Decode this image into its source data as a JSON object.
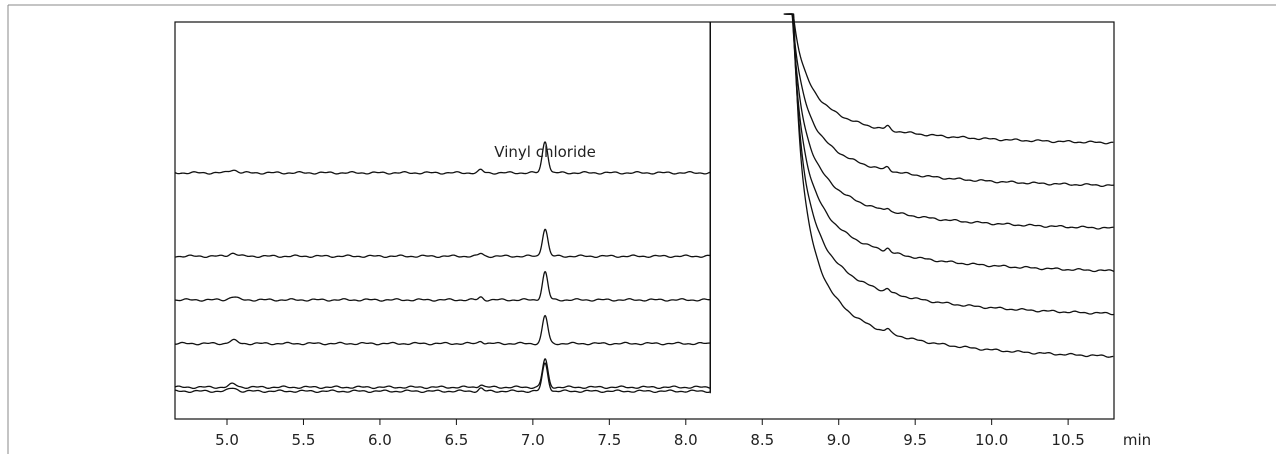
{
  "chart_data": {
    "type": "line",
    "title": "",
    "xlabel": "",
    "ylabel": "",
    "x_unit_label": "min",
    "xlim": [
      4.66,
      10.8
    ],
    "ylim": [
      0,
      100
    ],
    "grid": false,
    "x_ticks": [
      5.0,
      5.5,
      6.0,
      6.5,
      7.0,
      7.5,
      8.0,
      8.5,
      9.0,
      9.5,
      10.0,
      10.5
    ],
    "x_tick_labels": [
      "5.0",
      "5.5",
      "6.0",
      "6.5",
      "7.0",
      "7.5",
      "8.0",
      "8.5",
      "9.0",
      "9.5",
      "10.0",
      "10.5"
    ],
    "valve_switch_time": 8.16,
    "annotations": [
      {
        "text": "Vinyl chloride",
        "x": 7.08
      }
    ],
    "peaks": [
      {
        "name": "Vinyl chloride",
        "retention_time": 7.08
      },
      {
        "name": "",
        "retention_time": 6.66
      },
      {
        "name": "",
        "retention_time": 5.04
      }
    ],
    "series": [
      {
        "baseline_left": 62,
        "vinyl_chloride_height": 8,
        "baseline_right": 68
      },
      {
        "baseline_left": 41,
        "vinyl_chloride_height": 7,
        "baseline_right": 57
      },
      {
        "baseline_left": 30,
        "vinyl_chloride_height": 7,
        "baseline_right": 46
      },
      {
        "baseline_left": 19,
        "vinyl_chloride_height": 7,
        "baseline_right": 35
      },
      {
        "baseline_left": 8,
        "vinyl_chloride_height": 7,
        "baseline_right": 24
      },
      {
        "baseline_left": 7,
        "vinyl_chloride_height": 7,
        "baseline_right": 13
      }
    ]
  }
}
